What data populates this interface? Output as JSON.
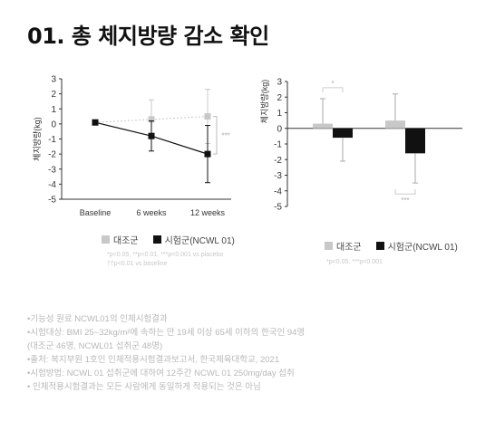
{
  "title": "01. 총 체지방량 감소 확인",
  "colors": {
    "placebo": "#c8c8c8",
    "treatment": "#111111",
    "text": "#222222",
    "note": "#c7c7c7"
  },
  "chart_data": [
    {
      "type": "line",
      "ylabel": "체지방량(kg)",
      "ylim": [
        -5,
        3
      ],
      "yticks": [
        -5,
        -4,
        -3,
        -2,
        -1,
        0,
        1,
        2,
        3
      ],
      "categories": [
        "Baseline",
        "6 weeks",
        "12 weeks"
      ],
      "series": [
        {
          "name": "대조군",
          "values": [
            0.1,
            0.3,
            0.5
          ],
          "errors": [
            0.0,
            1.3,
            1.8
          ]
        },
        {
          "name": "시험군(NCWL 01)",
          "values": [
            0.1,
            -0.8,
            -2.0
          ],
          "errors": [
            0.0,
            1.0,
            1.9
          ]
        }
      ],
      "annotations": [
        "***"
      ],
      "legend": [
        "대조군",
        "시험군(NCWL 01)"
      ],
      "note": [
        "*p<0.05, **p<0.01, ***p<0.001 vs placebo",
        "††p<0.01 vs baseline"
      ]
    },
    {
      "type": "bar",
      "ylabel": "체지방량(kg)",
      "ylim": [
        -5,
        3
      ],
      "yticks": [
        -5,
        -4,
        -3,
        -2,
        -1,
        0,
        1,
        2,
        3
      ],
      "categories": [
        "",
        ""
      ],
      "series": [
        {
          "name": "대조군",
          "values": [
            0.3,
            0.5
          ],
          "errors": [
            1.6,
            1.7
          ]
        },
        {
          "name": "시험군(NCWL 01)",
          "values": [
            -0.6,
            -1.6
          ],
          "errors": [
            1.5,
            1.9
          ]
        }
      ],
      "annotations": [
        "*",
        "***"
      ],
      "legend": [
        "대조군",
        "시험군(NCWL 01)"
      ],
      "note": [
        "*p<0.05, ***p<0.001"
      ]
    }
  ],
  "footnotes": [
    "•기능성 원료 NCWL01의 인체시험결과",
    "•시험대상: BMI 25~32kg/m²에 속하는 만 19세 이상 65세 이하의 한국인 94명",
    " (대조군 46명, NCWL01 섭취군 48명)",
    "•출처: 복지부원 1호인 인체적용시험결과보고서, 한국체육대학교, 2021",
    "•시험방법: NCWL 01 섭취군에 대하여 12주간 NCWL 01 250mg/day 섭취",
    "• 인체적용시험결과는 모든 사람에게 동일하게 적용되는 것은 아님"
  ]
}
